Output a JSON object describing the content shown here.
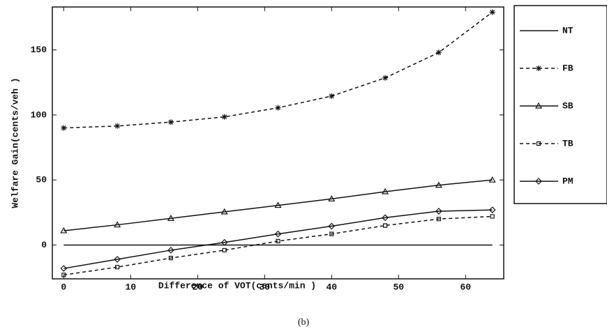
{
  "chart_data": {
    "type": "line",
    "x_label": "Difference of VOT(cents/min )",
    "y_label": "Welfare Gain(cents/veh )",
    "caption": "(b)",
    "x": [
      0,
      8,
      16,
      24,
      32,
      40,
      48,
      56,
      64
    ],
    "series": [
      {
        "name": "NT",
        "color": "#111111",
        "dash": false,
        "marker": "none",
        "values": [
          0,
          0,
          0,
          0,
          0,
          0,
          0,
          0,
          0
        ]
      },
      {
        "name": "FB",
        "color": "#111111",
        "dash": true,
        "marker": "star",
        "values": [
          90,
          91.5,
          94.5,
          98.5,
          105.5,
          114.5,
          128.5,
          148,
          179
        ]
      },
      {
        "name": "SB",
        "color": "#111111",
        "dash": false,
        "marker": "triangle",
        "values": [
          11,
          15.5,
          20.5,
          25.5,
          30.5,
          35.5,
          41,
          46,
          50
        ]
      },
      {
        "name": "TB",
        "color": "#111111",
        "dash": true,
        "marker": "square",
        "values": [
          -23,
          -17,
          -10,
          -4,
          3,
          8.5,
          15,
          20,
          22
        ]
      },
      {
        "name": "PM",
        "color": "#111111",
        "dash": false,
        "marker": "diamond",
        "values": [
          -18,
          -11,
          -4,
          2,
          8.5,
          14.5,
          21,
          26,
          27
        ]
      }
    ],
    "xlim": [
      -1.7,
      65.7
    ],
    "xticks": [
      0,
      10,
      20,
      30,
      40,
      50,
      60
    ],
    "ylim": [
      -26,
      183
    ],
    "yticks": [
      0,
      50,
      100,
      150
    ],
    "legend": "right"
  }
}
